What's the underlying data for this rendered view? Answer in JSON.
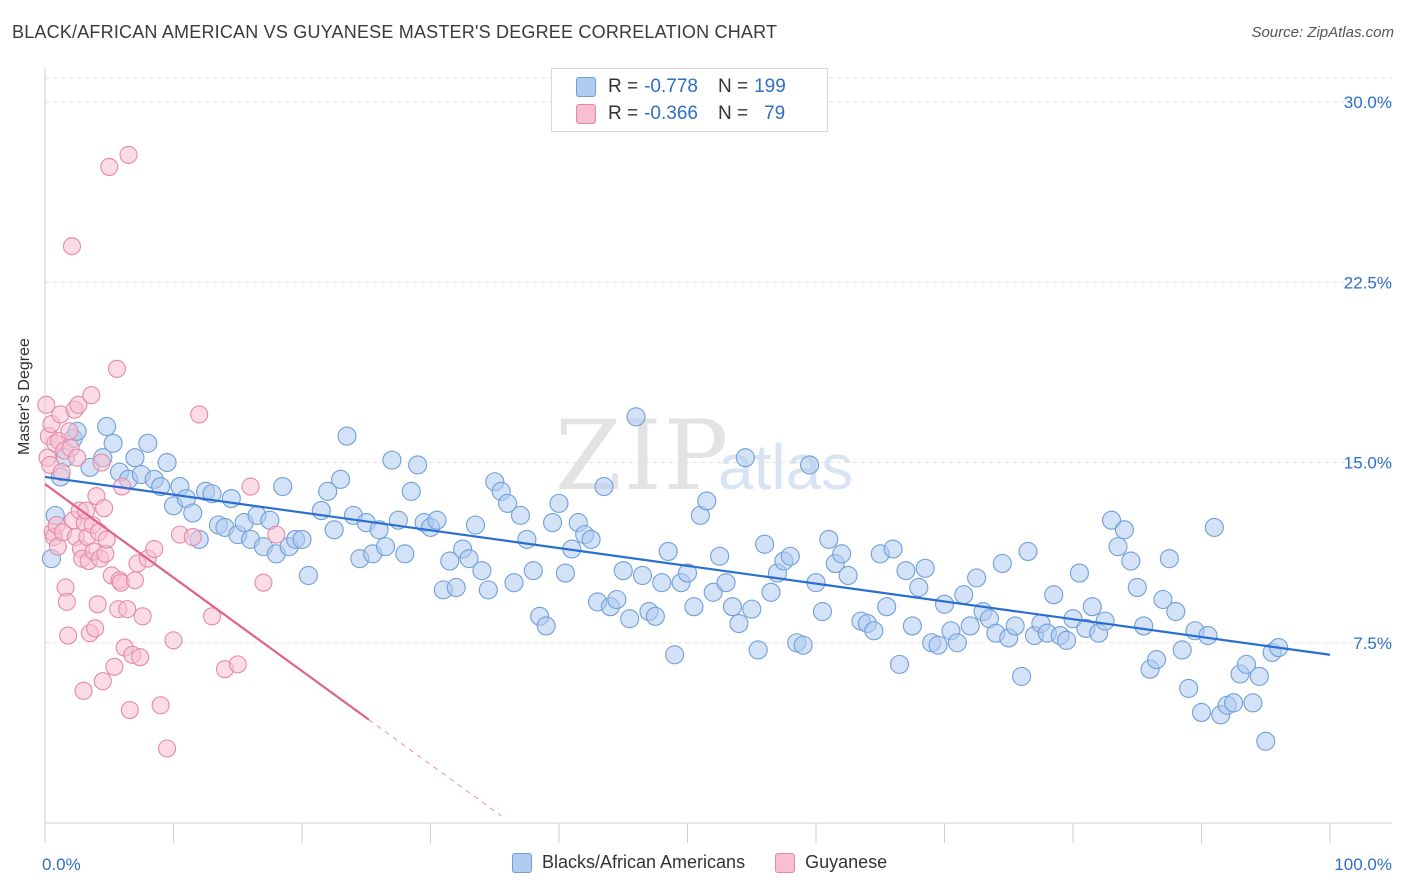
{
  "title": "BLACK/AFRICAN AMERICAN VS GUYANESE MASTER'S DEGREE CORRELATION CHART",
  "source": "Source: ZipAtlas.com",
  "watermark": {
    "zip": "ZIP",
    "atlas": "atlas"
  },
  "legend": {
    "r_label": "R =",
    "n_label": "N =",
    "rows": [
      {
        "r": "-0.778",
        "n": "199",
        "color": "#aecbf0",
        "border": "#6f9fd8"
      },
      {
        "r": "-0.366",
        "n": "79",
        "color": "#f7bfd1",
        "border": "#e48aa8"
      }
    ]
  },
  "bottom_legend": [
    {
      "label": "Blacks/African Americans",
      "color": "#aecbf0",
      "border": "#6f9fd8"
    },
    {
      "label": "Guyanese",
      "color": "#f7bfd1",
      "border": "#e48aa8"
    }
  ],
  "chart_data": {
    "type": "scatter",
    "title": "BLACK/AFRICAN AMERICAN VS GUYANESE MASTER'S DEGREE CORRELATION CHART",
    "xlabel": "",
    "ylabel": "Master's Degree",
    "xlim": [
      0,
      100
    ],
    "ylim": [
      0,
      31
    ],
    "x_tick_labels": [
      "0.0%",
      "100.0%"
    ],
    "y_ticks": [
      7.5,
      15.0,
      22.5,
      30.0
    ],
    "y_tick_labels": [
      "7.5%",
      "15.0%",
      "22.5%",
      "30.0%"
    ],
    "grid": true,
    "series": [
      {
        "name": "Blacks/African Americans",
        "color": "#6f9fd8",
        "fill": "#aecbf0",
        "trend": {
          "x": [
            0,
            100
          ],
          "y": [
            14.4,
            7.0
          ],
          "color": "#2a6fd0"
        },
        "points": [
          [
            0.5,
            11.0
          ],
          [
            0.8,
            12.8
          ],
          [
            1.2,
            14.4
          ],
          [
            1.6,
            15.2
          ],
          [
            2.2,
            16.0
          ],
          [
            2.5,
            16.3
          ],
          [
            3.5,
            14.8
          ],
          [
            4.5,
            15.2
          ],
          [
            4.8,
            16.5
          ],
          [
            5.3,
            15.8
          ],
          [
            5.8,
            14.6
          ],
          [
            6.5,
            14.3
          ],
          [
            7.0,
            15.2
          ],
          [
            7.5,
            14.5
          ],
          [
            8.0,
            15.8
          ],
          [
            8.5,
            14.3
          ],
          [
            9.0,
            14.0
          ],
          [
            9.5,
            15.0
          ],
          [
            10.0,
            13.2
          ],
          [
            10.5,
            14.0
          ],
          [
            11.0,
            13.5
          ],
          [
            11.5,
            12.9
          ],
          [
            12.0,
            11.8
          ],
          [
            12.5,
            13.8
          ],
          [
            13.0,
            13.7
          ],
          [
            13.5,
            12.4
          ],
          [
            14.0,
            12.3
          ],
          [
            14.5,
            13.5
          ],
          [
            15.0,
            12.0
          ],
          [
            15.5,
            12.5
          ],
          [
            16.0,
            11.8
          ],
          [
            16.5,
            12.8
          ],
          [
            17.0,
            11.5
          ],
          [
            17.5,
            12.6
          ],
          [
            18.0,
            11.2
          ],
          [
            18.5,
            14.0
          ],
          [
            19.0,
            11.5
          ],
          [
            19.5,
            11.8
          ],
          [
            20.0,
            11.8
          ],
          [
            20.5,
            10.3
          ],
          [
            21.5,
            13.0
          ],
          [
            22.0,
            13.8
          ],
          [
            22.5,
            12.2
          ],
          [
            23.0,
            14.3
          ],
          [
            23.5,
            16.1
          ],
          [
            24.0,
            12.8
          ],
          [
            24.5,
            11.0
          ],
          [
            25.0,
            12.5
          ],
          [
            25.5,
            11.2
          ],
          [
            26.0,
            12.2
          ],
          [
            26.5,
            11.5
          ],
          [
            27.0,
            15.1
          ],
          [
            27.5,
            12.6
          ],
          [
            28.0,
            11.2
          ],
          [
            28.5,
            13.8
          ],
          [
            29.0,
            14.9
          ],
          [
            29.5,
            12.5
          ],
          [
            30.0,
            12.3
          ],
          [
            30.5,
            12.6
          ],
          [
            31.0,
            9.7
          ],
          [
            31.5,
            10.9
          ],
          [
            32.0,
            9.8
          ],
          [
            32.5,
            11.4
          ],
          [
            33.0,
            11.0
          ],
          [
            33.5,
            12.4
          ],
          [
            34.0,
            10.5
          ],
          [
            34.5,
            9.7
          ],
          [
            35.0,
            14.2
          ],
          [
            35.5,
            13.8
          ],
          [
            36.0,
            13.3
          ],
          [
            36.5,
            10.0
          ],
          [
            37.0,
            12.8
          ],
          [
            37.5,
            11.8
          ],
          [
            38.0,
            10.5
          ],
          [
            38.5,
            8.6
          ],
          [
            39.0,
            8.2
          ],
          [
            39.5,
            12.5
          ],
          [
            40.0,
            13.3
          ],
          [
            40.5,
            10.4
          ],
          [
            41.0,
            11.4
          ],
          [
            41.5,
            12.5
          ],
          [
            42.0,
            12.0
          ],
          [
            42.5,
            11.8
          ],
          [
            43.0,
            9.2
          ],
          [
            43.5,
            14.0
          ],
          [
            44.0,
            9.0
          ],
          [
            44.5,
            9.3
          ],
          [
            45.0,
            10.5
          ],
          [
            45.5,
            8.5
          ],
          [
            46.0,
            16.9
          ],
          [
            46.5,
            10.3
          ],
          [
            47.0,
            8.8
          ],
          [
            47.5,
            8.6
          ],
          [
            48.0,
            10.0
          ],
          [
            48.5,
            11.3
          ],
          [
            49.0,
            7.0
          ],
          [
            49.5,
            10.0
          ],
          [
            50.0,
            10.4
          ],
          [
            50.5,
            9.0
          ],
          [
            51.0,
            12.8
          ],
          [
            51.5,
            13.4
          ],
          [
            52.0,
            9.6
          ],
          [
            52.5,
            11.1
          ],
          [
            53.0,
            10.0
          ],
          [
            53.5,
            9.0
          ],
          [
            54.0,
            8.3
          ],
          [
            54.5,
            15.2
          ],
          [
            55.0,
            8.9
          ],
          [
            55.5,
            7.2
          ],
          [
            56.0,
            11.6
          ],
          [
            56.5,
            9.6
          ],
          [
            57.0,
            10.4
          ],
          [
            57.5,
            10.9
          ],
          [
            58.0,
            11.1
          ],
          [
            58.5,
            7.5
          ],
          [
            59.0,
            7.4
          ],
          [
            59.5,
            14.9
          ],
          [
            60.0,
            10.0
          ],
          [
            60.5,
            8.8
          ],
          [
            61.0,
            11.8
          ],
          [
            61.5,
            10.8
          ],
          [
            62.0,
            11.2
          ],
          [
            62.5,
            10.3
          ],
          [
            63.5,
            8.4
          ],
          [
            64.0,
            8.3
          ],
          [
            64.5,
            8.0
          ],
          [
            65.0,
            11.2
          ],
          [
            65.5,
            9.0
          ],
          [
            66.0,
            11.4
          ],
          [
            66.5,
            6.6
          ],
          [
            67.0,
            10.5
          ],
          [
            67.5,
            8.2
          ],
          [
            68.0,
            9.8
          ],
          [
            68.5,
            10.6
          ],
          [
            69.0,
            7.5
          ],
          [
            69.5,
            7.4
          ],
          [
            70.0,
            9.1
          ],
          [
            70.5,
            8.0
          ],
          [
            71.0,
            7.5
          ],
          [
            71.5,
            9.5
          ],
          [
            72.0,
            8.2
          ],
          [
            72.5,
            10.2
          ],
          [
            73.0,
            8.8
          ],
          [
            73.5,
            8.5
          ],
          [
            74.0,
            7.9
          ],
          [
            74.5,
            10.8
          ],
          [
            75.0,
            7.7
          ],
          [
            75.5,
            8.2
          ],
          [
            76.0,
            6.1
          ],
          [
            76.5,
            11.3
          ],
          [
            77.0,
            7.8
          ],
          [
            77.5,
            8.3
          ],
          [
            78.0,
            7.9
          ],
          [
            78.5,
            9.5
          ],
          [
            79.0,
            7.8
          ],
          [
            79.5,
            7.6
          ],
          [
            80.0,
            8.5
          ],
          [
            80.5,
            10.4
          ],
          [
            81.0,
            8.1
          ],
          [
            81.5,
            9.0
          ],
          [
            82.0,
            7.9
          ],
          [
            82.5,
            8.4
          ],
          [
            83.0,
            12.6
          ],
          [
            83.5,
            11.5
          ],
          [
            84.0,
            12.2
          ],
          [
            84.5,
            10.9
          ],
          [
            85.0,
            9.8
          ],
          [
            85.5,
            8.2
          ],
          [
            86.0,
            6.4
          ],
          [
            86.5,
            6.8
          ],
          [
            87.0,
            9.3
          ],
          [
            87.5,
            11.0
          ],
          [
            88.0,
            8.8
          ],
          [
            88.5,
            7.2
          ],
          [
            89.0,
            5.6
          ],
          [
            89.5,
            8.0
          ],
          [
            90.0,
            4.6
          ],
          [
            90.5,
            7.8
          ],
          [
            91.0,
            12.3
          ],
          [
            91.5,
            4.5
          ],
          [
            92.0,
            4.9
          ],
          [
            92.5,
            5.0
          ],
          [
            93.0,
            6.2
          ],
          [
            93.5,
            6.6
          ],
          [
            94.0,
            5.0
          ],
          [
            94.5,
            6.1
          ],
          [
            95.0,
            3.4
          ],
          [
            95.5,
            7.1
          ],
          [
            96.0,
            7.3
          ]
        ]
      },
      {
        "name": "Guyanese",
        "color": "#e48aa8",
        "fill": "#f7bfd1",
        "trend": {
          "x": [
            0,
            25.2
          ],
          "y": [
            14.1,
            4.3
          ],
          "dash_to": [
            35.5,
            0.3
          ],
          "color": "#e06090"
        },
        "points": [
          [
            0.1,
            17.4
          ],
          [
            0.2,
            15.2
          ],
          [
            0.3,
            16.1
          ],
          [
            0.4,
            14.9
          ],
          [
            0.5,
            16.6
          ],
          [
            0.6,
            12.1
          ],
          [
            0.7,
            11.9
          ],
          [
            0.8,
            15.8
          ],
          [
            0.9,
            12.4
          ],
          [
            1.0,
            11.5
          ],
          [
            1.1,
            15.9
          ],
          [
            1.2,
            17.0
          ],
          [
            1.3,
            14.6
          ],
          [
            1.4,
            12.1
          ],
          [
            1.5,
            15.5
          ],
          [
            1.6,
            9.8
          ],
          [
            1.7,
            9.2
          ],
          [
            1.8,
            7.8
          ],
          [
            1.9,
            16.3
          ],
          [
            2.0,
            15.6
          ],
          [
            2.1,
            24.0
          ],
          [
            2.2,
            12.6
          ],
          [
            2.3,
            17.2
          ],
          [
            2.4,
            11.9
          ],
          [
            2.5,
            15.2
          ],
          [
            2.6,
            17.4
          ],
          [
            2.7,
            13.0
          ],
          [
            2.8,
            11.4
          ],
          [
            2.9,
            11.0
          ],
          [
            3.0,
            5.5
          ],
          [
            3.1,
            12.5
          ],
          [
            3.2,
            13.0
          ],
          [
            3.3,
            11.9
          ],
          [
            3.4,
            10.9
          ],
          [
            3.5,
            7.9
          ],
          [
            3.6,
            17.8
          ],
          [
            3.7,
            12.4
          ],
          [
            3.8,
            11.3
          ],
          [
            3.9,
            8.1
          ],
          [
            4.0,
            13.6
          ],
          [
            4.1,
            9.1
          ],
          [
            4.2,
            12.1
          ],
          [
            4.3,
            11.0
          ],
          [
            4.4,
            15.0
          ],
          [
            4.5,
            5.9
          ],
          [
            4.6,
            13.1
          ],
          [
            4.7,
            11.2
          ],
          [
            4.8,
            11.8
          ],
          [
            5.0,
            27.3
          ],
          [
            5.2,
            10.3
          ],
          [
            5.4,
            6.5
          ],
          [
            5.6,
            18.9
          ],
          [
            5.7,
            8.9
          ],
          [
            5.8,
            10.1
          ],
          [
            5.9,
            10.0
          ],
          [
            6.0,
            14.0
          ],
          [
            6.2,
            7.3
          ],
          [
            6.4,
            8.9
          ],
          [
            6.5,
            27.8
          ],
          [
            6.6,
            4.7
          ],
          [
            6.8,
            7.0
          ],
          [
            7.0,
            10.1
          ],
          [
            7.2,
            10.8
          ],
          [
            7.4,
            6.9
          ],
          [
            7.6,
            8.6
          ],
          [
            8.0,
            11.0
          ],
          [
            8.5,
            11.4
          ],
          [
            9.0,
            4.9
          ],
          [
            9.5,
            3.1
          ],
          [
            10.0,
            7.6
          ],
          [
            10.5,
            12.0
          ],
          [
            11.5,
            11.9
          ],
          [
            12.0,
            17.0
          ],
          [
            13.0,
            8.6
          ],
          [
            14.0,
            6.4
          ],
          [
            15.0,
            6.6
          ],
          [
            16.0,
            14.0
          ],
          [
            17.0,
            10.0
          ],
          [
            18.0,
            12.0
          ]
        ]
      }
    ]
  }
}
